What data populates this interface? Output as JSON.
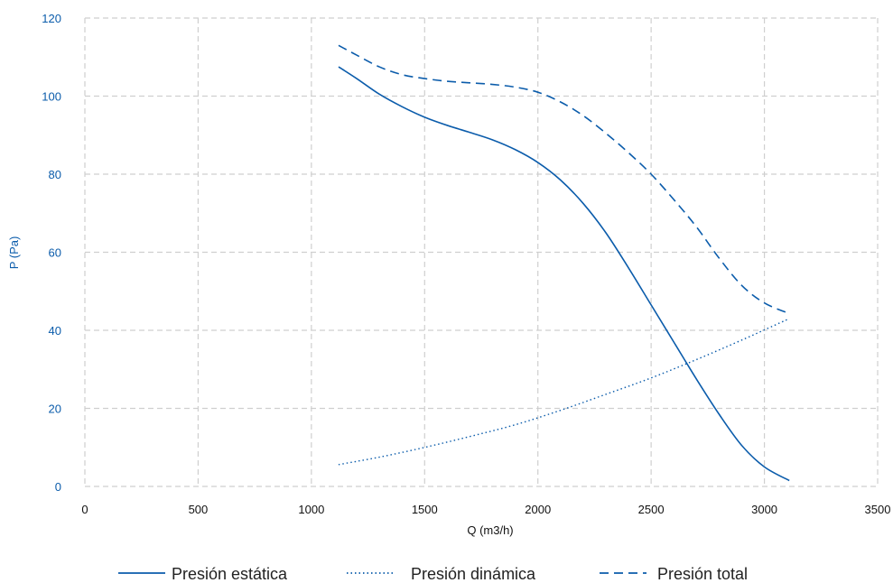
{
  "chart_data": {
    "type": "line",
    "title": "",
    "xlabel": "Q (m3/h)",
    "ylabel": "P (Pa)",
    "xlim": [
      0,
      3500
    ],
    "ylim": [
      0,
      120
    ],
    "xticks": [
      0,
      500,
      1000,
      1500,
      2000,
      2500,
      3000,
      3500
    ],
    "yticks": [
      0,
      20,
      40,
      60,
      80,
      100,
      120
    ],
    "grid": true,
    "legend_position": "bottom",
    "colors": {
      "series": "#0b5cab",
      "grid": "#cfcfcf",
      "y_axis_text": "#0b5cab",
      "x_axis_text": "#111111"
    },
    "series": [
      {
        "name": "Presión estática",
        "style": "solid",
        "x": [
          1120,
          1200,
          1300,
          1400,
          1500,
          1600,
          1700,
          1800,
          1900,
          2000,
          2100,
          2200,
          2300,
          2400,
          2500,
          2600,
          2700,
          2800,
          2900,
          3000,
          3110
        ],
        "y": [
          107.5,
          104.5,
          100.5,
          97.3,
          94.6,
          92.5,
          90.7,
          88.8,
          86.3,
          83.0,
          78.5,
          72.5,
          65.0,
          56.0,
          46.5,
          37.0,
          27.5,
          18.5,
          10.5,
          5.0,
          1.5
        ]
      },
      {
        "name": "Presión dinámica",
        "style": "dotted",
        "x": [
          1120,
          1300,
          1500,
          1700,
          1900,
          2100,
          2300,
          2500,
          2700,
          2900,
          3110
        ],
        "y": [
          5.6,
          7.5,
          10.0,
          12.8,
          15.8,
          19.5,
          23.6,
          27.8,
          32.5,
          37.5,
          43.0
        ]
      },
      {
        "name": "Presión total",
        "style": "dashed",
        "x": [
          1120,
          1200,
          1300,
          1400,
          1500,
          1600,
          1700,
          1800,
          1900,
          2000,
          2100,
          2200,
          2300,
          2400,
          2500,
          2600,
          2700,
          2800,
          2900,
          3000,
          3110
        ],
        "y": [
          113.0,
          110.5,
          107.5,
          105.5,
          104.5,
          103.8,
          103.4,
          103.0,
          102.3,
          101.0,
          98.5,
          95.0,
          90.5,
          85.5,
          80.0,
          73.5,
          66.5,
          58.5,
          51.5,
          47.0,
          44.3
        ]
      }
    ]
  }
}
